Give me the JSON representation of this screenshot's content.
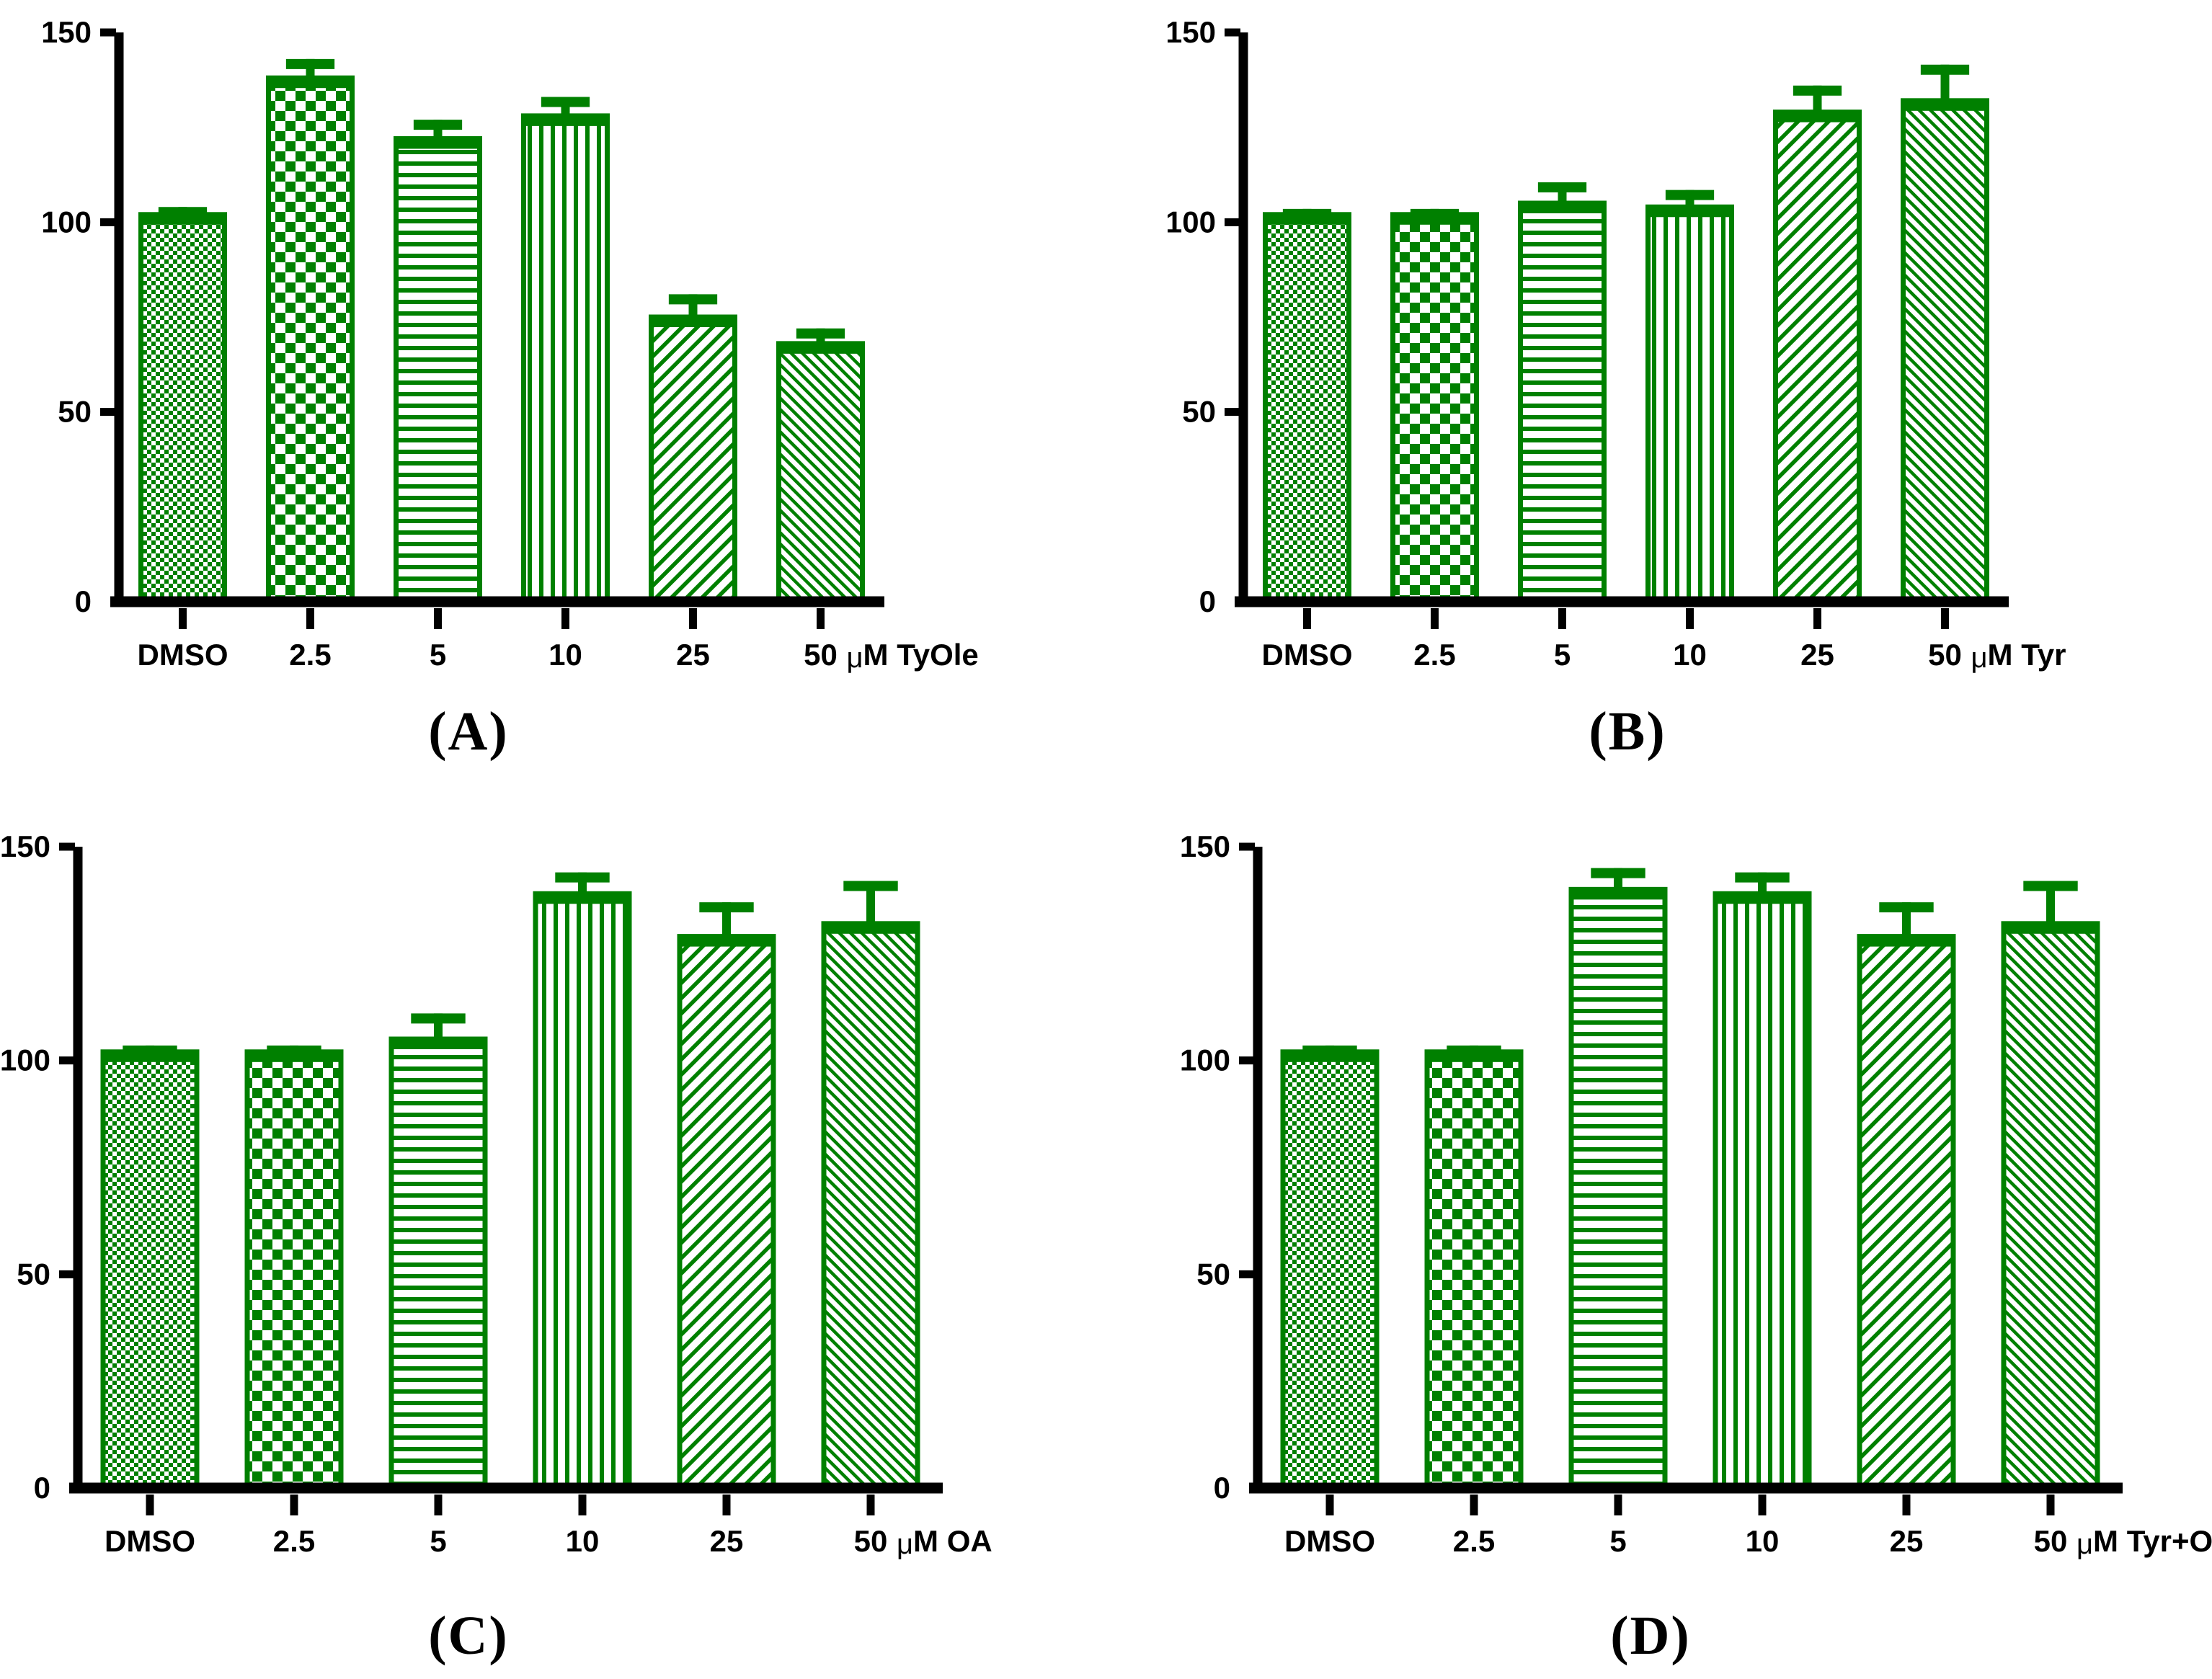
{
  "style": {
    "bar_color": "#008000",
    "axis_color": "#000000",
    "background_color": "#ffffff"
  },
  "chart_data": [
    {
      "type": "bar",
      "panel_id": "A",
      "caption": "(A)",
      "title": "",
      "xlabel": "",
      "ylabel": "",
      "categories": [
        "DMSO",
        "2.5",
        "5",
        "10",
        "25",
        "50"
      ],
      "unit_suffix": "μM TyOle",
      "values": [
        102,
        138,
        122,
        128,
        75,
        68
      ],
      "errors": [
        2,
        5,
        5,
        5,
        6,
        4
      ],
      "ylim": [
        0,
        150
      ],
      "yticks": [
        0,
        50,
        100,
        150
      ],
      "grid": false,
      "legend": false,
      "bar_patterns": [
        "fine-checker",
        "coarse-checker",
        "horizontal-lines",
        "vertical-lines",
        "diagonal-up",
        "diagonal-down"
      ]
    },
    {
      "type": "bar",
      "panel_id": "B",
      "caption": "(B)",
      "title": "",
      "xlabel": "",
      "ylabel": "",
      "categories": [
        "DMSO",
        "2.5",
        "5",
        "10",
        "25",
        "50"
      ],
      "unit_suffix": "μM Tyr",
      "values": [
        102,
        102,
        105,
        104,
        129,
        132
      ],
      "errors": [
        1.5,
        1.5,
        5.5,
        4.5,
        7,
        9.5
      ],
      "ylim": [
        0,
        150
      ],
      "yticks": [
        0,
        50,
        100,
        150
      ],
      "grid": false,
      "legend": false,
      "bar_patterns": [
        "fine-checker",
        "coarse-checker",
        "horizontal-lines",
        "vertical-lines",
        "diagonal-up",
        "diagonal-down"
      ]
    },
    {
      "type": "bar",
      "panel_id": "C",
      "caption": "(C)",
      "title": "",
      "xlabel": "",
      "ylabel": "",
      "categories": [
        "DMSO",
        "2.5",
        "5",
        "10",
        "25",
        "50"
      ],
      "unit_suffix": "μM OA",
      "values": [
        102,
        102,
        105,
        139,
        129,
        132
      ],
      "errors": [
        1.5,
        1.5,
        6,
        5,
        8,
        10
      ],
      "ylim": [
        0,
        150
      ],
      "yticks": [
        0,
        50,
        100,
        150
      ],
      "grid": false,
      "legend": false,
      "bar_patterns": [
        "fine-checker",
        "coarse-checker",
        "horizontal-lines",
        "vertical-lines",
        "diagonal-up",
        "diagonal-down"
      ]
    },
    {
      "type": "bar",
      "panel_id": "D",
      "caption": "(D)",
      "title": "",
      "xlabel": "",
      "ylabel": "",
      "categories": [
        "DMSO",
        "2.5",
        "5",
        "10",
        "25",
        "50"
      ],
      "unit_suffix": "μM Tyr+OA",
      "values": [
        102,
        102,
        140,
        139,
        129,
        132
      ],
      "errors": [
        1.5,
        1.5,
        5,
        5,
        8,
        10
      ],
      "ylim": [
        0,
        150
      ],
      "yticks": [
        0,
        50,
        100,
        150
      ],
      "grid": false,
      "legend": false,
      "bar_patterns": [
        "fine-checker",
        "coarse-checker",
        "horizontal-lines",
        "vertical-lines",
        "diagonal-up",
        "diagonal-down"
      ]
    }
  ]
}
